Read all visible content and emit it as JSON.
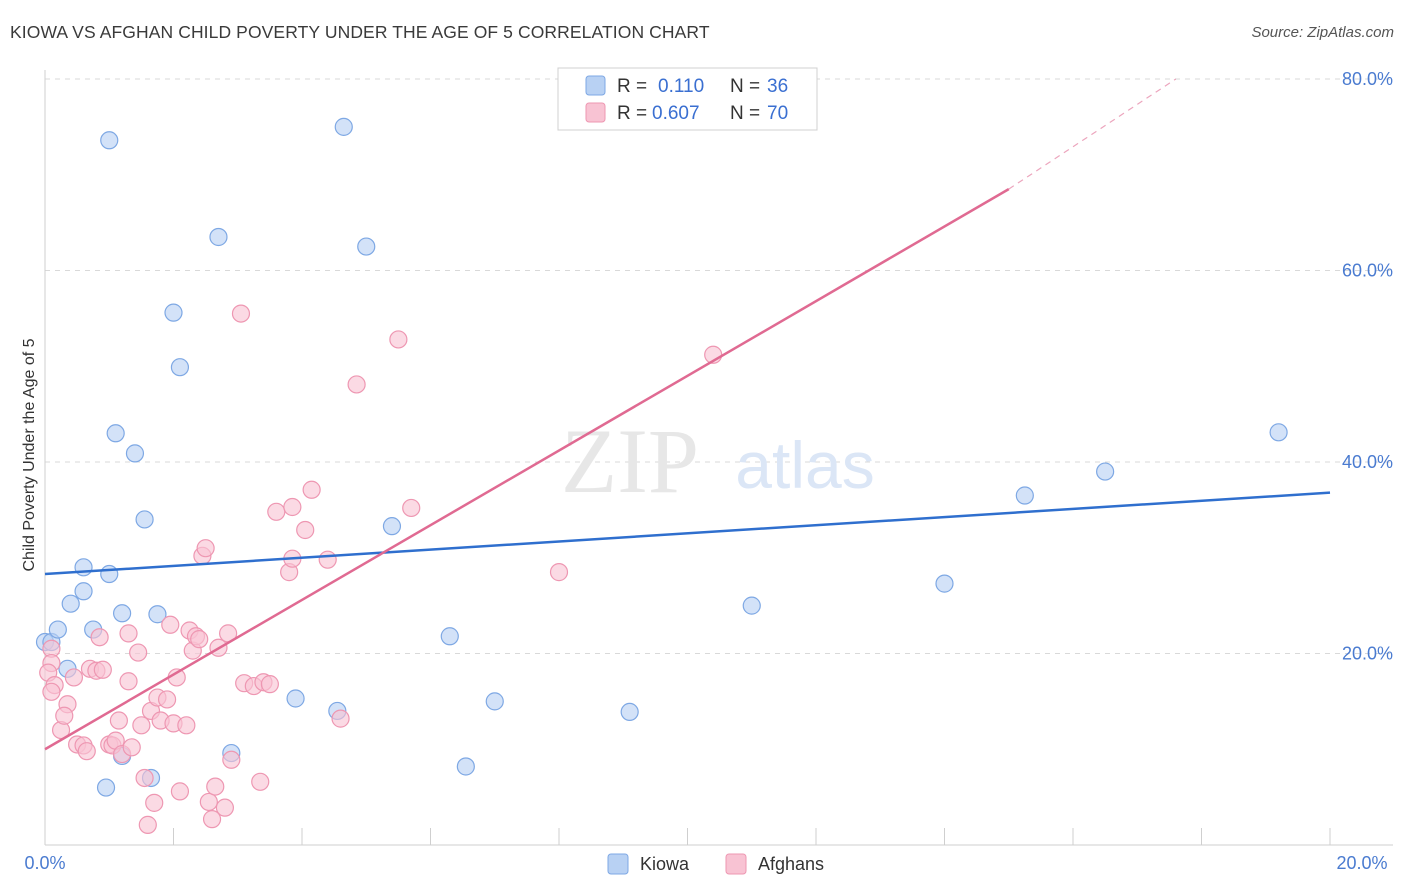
{
  "title": "KIOWA VS AFGHAN CHILD POVERTY UNDER THE AGE OF 5 CORRELATION CHART",
  "source": "Source: ZipAtlas.com",
  "watermark": {
    "zip": "ZIP",
    "atlas": "atlas"
  },
  "legend": [
    {
      "r_label": "R =",
      "r_value": "0.110",
      "n_label": "N =",
      "n_value": "36"
    },
    {
      "r_label": "R =",
      "r_value": "0.607",
      "n_label": "N =",
      "n_value": "70"
    }
  ],
  "colors": {
    "kiowa_fill": "#b8d1f3",
    "kiowa_stroke": "#7ea8e4",
    "kiowa_line": "#2f6fce",
    "afghan_fill": "#f8c3d3",
    "afghan_stroke": "#ee97b2",
    "afghan_line": "#e06a92",
    "value_text": "#3a6fd1",
    "grid": "#d9d9d9"
  },
  "chart_data": {
    "type": "scatter",
    "title": "KIOWA VS AFGHAN CHILD POVERTY UNDER THE AGE OF 5 CORRELATION CHART",
    "xlabel": "",
    "ylabel": "Child Poverty Under the Age of 5",
    "xlim": [
      0,
      20
    ],
    "ylim": [
      0,
      80
    ],
    "x_tick_labels": [
      "0.0%",
      "20.0%"
    ],
    "y_ticks": [
      20,
      40,
      60,
      80
    ],
    "y_tick_labels": [
      "20.0%",
      "40.0%",
      "60.0%",
      "80.0%"
    ],
    "series": [
      {
        "name": "Kiowa",
        "r": 0.11,
        "n": 36,
        "trend": {
          "x0": 0,
          "y0": 28.3,
          "x1": 20,
          "y1": 36.8
        },
        "points": [
          [
            0.0,
            21.2
          ],
          [
            0.1,
            21.2
          ],
          [
            0.35,
            18.4
          ],
          [
            0.2,
            22.5
          ],
          [
            0.6,
            29.0
          ],
          [
            0.6,
            26.5
          ],
          [
            0.4,
            25.2
          ],
          [
            1.0,
            28.3
          ],
          [
            1.1,
            43.0
          ],
          [
            1.4,
            40.9
          ],
          [
            1.55,
            34.0
          ],
          [
            1.2,
            24.2
          ],
          [
            1.2,
            9.3
          ],
          [
            1.75,
            24.1
          ],
          [
            1.65,
            7.0
          ],
          [
            0.75,
            22.5
          ],
          [
            1.0,
            73.6
          ],
          [
            0.95,
            6.0
          ],
          [
            2.7,
            63.5
          ],
          [
            2.1,
            49.9
          ],
          [
            2.0,
            55.6
          ],
          [
            2.9,
            9.6
          ],
          [
            3.9,
            15.3
          ],
          [
            4.65,
            75.0
          ],
          [
            5.0,
            62.5
          ],
          [
            5.4,
            33.3
          ],
          [
            4.55,
            14.0
          ],
          [
            6.3,
            21.8
          ],
          [
            6.55,
            8.2
          ],
          [
            7.0,
            15.0
          ],
          [
            9.1,
            13.9
          ],
          [
            11.0,
            25.0
          ],
          [
            14.0,
            27.3
          ],
          [
            15.25,
            36.5
          ],
          [
            16.5,
            39.0
          ],
          [
            19.2,
            43.1
          ]
        ]
      },
      {
        "name": "Afghans",
        "r": 0.607,
        "n": 70,
        "trend": {
          "x0": 0,
          "y0": 10.0,
          "x1": 15.0,
          "y1": 68.5,
          "x_dash_end": 17.6,
          "y_dash_end": 80.0
        },
        "points": [
          [
            0.1,
            20.5
          ],
          [
            0.1,
            19.0
          ],
          [
            0.05,
            18.0
          ],
          [
            0.15,
            16.7
          ],
          [
            0.1,
            16.0
          ],
          [
            0.25,
            12.0
          ],
          [
            0.35,
            14.7
          ],
          [
            0.3,
            13.5
          ],
          [
            0.45,
            17.5
          ],
          [
            0.5,
            10.5
          ],
          [
            0.6,
            10.4
          ],
          [
            0.65,
            9.8
          ],
          [
            0.7,
            18.4
          ],
          [
            0.8,
            18.2
          ],
          [
            0.85,
            21.7
          ],
          [
            0.9,
            18.3
          ],
          [
            1.0,
            10.5
          ],
          [
            1.05,
            10.4
          ],
          [
            1.1,
            10.9
          ],
          [
            1.15,
            13.0
          ],
          [
            1.2,
            9.5
          ],
          [
            1.3,
            22.1
          ],
          [
            1.3,
            17.1
          ],
          [
            1.35,
            10.2
          ],
          [
            1.45,
            20.1
          ],
          [
            1.5,
            12.5
          ],
          [
            1.55,
            7.0
          ],
          [
            1.6,
            2.1
          ],
          [
            1.65,
            14.0
          ],
          [
            1.7,
            4.4
          ],
          [
            1.75,
            15.4
          ],
          [
            1.8,
            13.0
          ],
          [
            1.9,
            15.2
          ],
          [
            1.95,
            23.0
          ],
          [
            2.0,
            12.7
          ],
          [
            2.05,
            17.5
          ],
          [
            2.1,
            5.6
          ],
          [
            2.2,
            12.5
          ],
          [
            2.25,
            22.4
          ],
          [
            2.3,
            20.3
          ],
          [
            2.35,
            21.8
          ],
          [
            2.4,
            21.5
          ],
          [
            2.45,
            30.2
          ],
          [
            2.5,
            31.0
          ],
          [
            2.55,
            4.5
          ],
          [
            2.6,
            2.7
          ],
          [
            2.65,
            6.1
          ],
          [
            2.7,
            20.6
          ],
          [
            2.8,
            3.9
          ],
          [
            2.85,
            22.1
          ],
          [
            2.9,
            8.9
          ],
          [
            3.05,
            55.5
          ],
          [
            3.1,
            16.9
          ],
          [
            3.25,
            16.6
          ],
          [
            3.35,
            6.6
          ],
          [
            3.4,
            17.0
          ],
          [
            3.5,
            16.8
          ],
          [
            3.6,
            34.8
          ],
          [
            3.8,
            28.5
          ],
          [
            3.85,
            29.9
          ],
          [
            3.85,
            35.3
          ],
          [
            4.05,
            32.9
          ],
          [
            4.15,
            37.1
          ],
          [
            4.4,
            29.8
          ],
          [
            4.6,
            13.2
          ],
          [
            4.85,
            48.1
          ],
          [
            5.5,
            52.8
          ],
          [
            5.7,
            35.2
          ],
          [
            8.0,
            28.5
          ],
          [
            10.4,
            51.2
          ]
        ]
      }
    ]
  }
}
